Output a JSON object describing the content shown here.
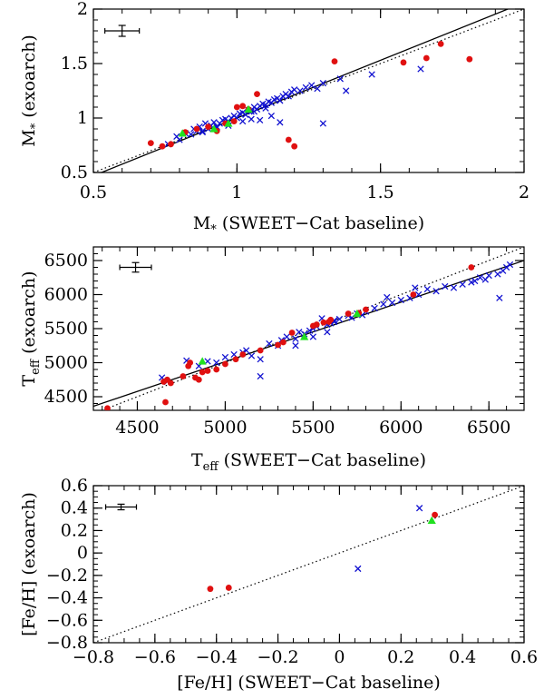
{
  "chart_data": [
    {
      "type": "scatter",
      "id": "mass",
      "xlabel": {
        "main": "M",
        "sub": "*",
        "rest": " (SWEET−Cat baseline)"
      },
      "ylabel": {
        "main": "M",
        "sub": "*",
        "rest": " (exoarch)"
      },
      "xlim": [
        0.5,
        2.0
      ],
      "ylim": [
        0.5,
        2.0
      ],
      "xticks": [
        "0.5",
        "1",
        "1.5",
        "2"
      ],
      "xtick_values": [
        0.5,
        1.0,
        1.5,
        2.0
      ],
      "yticks": [
        "0.5",
        "1",
        "1.5",
        "2"
      ],
      "ytick_values": [
        0.5,
        1.0,
        1.5,
        2.0
      ],
      "minor_step": 0.1,
      "fit_line": {
        "x": [
          0.5,
          2.0
        ],
        "y": [
          0.47,
          2.06
        ]
      },
      "identity_line": {
        "x": [
          0.5,
          2.0
        ],
        "y": [
          0.5,
          2.0
        ]
      },
      "error_bar": {
        "x": 0.6,
        "y": 1.8,
        "dx": 0.06,
        "dy": 0.05
      },
      "series": [
        {
          "name": "cross",
          "marker": "x",
          "color": "#1010d0",
          "x": [
            0.76,
            0.79,
            0.8,
            0.82,
            0.84,
            0.85,
            0.86,
            0.87,
            0.88,
            0.89,
            0.9,
            0.91,
            0.92,
            0.93,
            0.94,
            0.95,
            0.96,
            0.97,
            0.98,
            0.99,
            1.0,
            1.01,
            1.02,
            1.03,
            1.04,
            1.05,
            1.06,
            1.07,
            1.08,
            1.09,
            1.1,
            1.11,
            1.12,
            1.13,
            1.14,
            1.15,
            1.16,
            1.17,
            1.18,
            1.19,
            1.2,
            1.22,
            1.24,
            1.26,
            1.28,
            1.3,
            1.02,
            1.05,
            1.08,
            1.12,
            1.15,
            1.3,
            1.36,
            1.38,
            1.47,
            1.64,
            0.88,
            0.93,
            0.97,
            1.06,
            1.1
          ],
          "y": [
            0.76,
            0.83,
            0.8,
            0.86,
            0.85,
            0.9,
            0.88,
            0.92,
            0.87,
            0.95,
            0.9,
            0.93,
            0.96,
            0.91,
            0.95,
            0.98,
            0.99,
            0.97,
            1.0,
            1.02,
            1.0,
            1.04,
            1.05,
            1.03,
            1.07,
            1.06,
            1.1,
            1.08,
            1.11,
            1.13,
            1.12,
            1.15,
            1.14,
            1.17,
            1.18,
            1.16,
            1.2,
            1.22,
            1.2,
            1.24,
            1.26,
            1.25,
            1.28,
            1.3,
            1.27,
            1.32,
            0.97,
            0.99,
            0.98,
            1.02,
            0.96,
            0.95,
            1.36,
            1.25,
            1.4,
            1.45,
            0.88,
            0.92,
            0.93,
            1.06,
            1.09
          ]
        },
        {
          "name": "circle",
          "marker": "circle",
          "color": "#e01010",
          "x": [
            0.7,
            0.74,
            0.77,
            0.82,
            0.86,
            0.9,
            0.93,
            0.96,
            0.99,
            1.0,
            1.02,
            1.04,
            1.07,
            1.18,
            1.2,
            1.34,
            1.58,
            1.66,
            1.71,
            1.81
          ],
          "y": [
            0.77,
            0.74,
            0.76,
            0.87,
            0.9,
            0.92,
            0.88,
            0.95,
            0.97,
            1.1,
            1.11,
            1.08,
            1.22,
            0.8,
            0.74,
            1.52,
            1.51,
            1.55,
            1.68,
            1.54
          ]
        },
        {
          "name": "triangle",
          "marker": "triangle",
          "color": "#20e020",
          "x": [
            0.81,
            0.92,
            0.97,
            1.04
          ],
          "y": [
            0.86,
            0.9,
            0.95,
            1.08
          ]
        }
      ]
    },
    {
      "type": "scatter",
      "id": "teff",
      "xlabel": {
        "main": "T",
        "sub": "eff",
        "rest": " (SWEET−Cat baseline)"
      },
      "ylabel": {
        "main": "T",
        "sub": "eff",
        "rest": " (exoarch)"
      },
      "xlim": [
        4250,
        6700
      ],
      "ylim": [
        4300,
        6700
      ],
      "xticks": [
        "4500",
        "5000",
        "5500",
        "6000",
        "6500"
      ],
      "xtick_values": [
        4500,
        5000,
        5500,
        6000,
        6500
      ],
      "yticks": [
        "4500",
        "5000",
        "5500",
        "6000",
        "6500"
      ],
      "ytick_values": [
        4500,
        5000,
        5500,
        6000,
        6500
      ],
      "minor_step": 100,
      "fit_line": {
        "x": [
          4250,
          6700
        ],
        "y": [
          4360,
          6500
        ]
      },
      "identity_line": {
        "x": [
          4250,
          6700
        ],
        "y": [
          4250,
          6700
        ]
      },
      "error_bar": {
        "x": 4490,
        "y": 6400,
        "dx": 90,
        "dy": 70
      },
      "series": [
        {
          "name": "cross",
          "marker": "x",
          "color": "#1010d0",
          "x": [
            4640,
            4670,
            4780,
            4850,
            4900,
            4950,
            5000,
            5050,
            5100,
            5120,
            5150,
            5200,
            5250,
            5300,
            5320,
            5350,
            5400,
            5420,
            5450,
            5480,
            5500,
            5520,
            5550,
            5580,
            5600,
            5620,
            5650,
            5700,
            5720,
            5750,
            5780,
            5800,
            5850,
            5900,
            5920,
            5950,
            6000,
            6050,
            6080,
            6100,
            6150,
            6200,
            6250,
            6300,
            6350,
            6400,
            6420,
            6450,
            6480,
            6500,
            6550,
            6580,
            6600,
            6620,
            6560,
            5500,
            5580,
            5620,
            5200,
            5400
          ],
          "y": [
            4780,
            4720,
            5030,
            4950,
            5020,
            5000,
            5080,
            5120,
            5150,
            5180,
            5100,
            4800,
            5280,
            5250,
            5330,
            5380,
            5350,
            5450,
            5420,
            5470,
            5500,
            5530,
            5650,
            5560,
            5580,
            5620,
            5640,
            5690,
            5660,
            5720,
            5700,
            5750,
            5800,
            5860,
            5960,
            5880,
            5920,
            5950,
            6100,
            6000,
            6080,
            6050,
            6120,
            6100,
            6150,
            6180,
            6200,
            6250,
            6220,
            6280,
            6300,
            6350,
            6400,
            6440,
            5950,
            5380,
            5450,
            5600,
            5050,
            5250
          ]
        },
        {
          "name": "circle",
          "marker": "circle",
          "color": "#e01010",
          "x": [
            4330,
            4650,
            4670,
            4690,
            4760,
            4790,
            4800,
            4830,
            4850,
            4870,
            4900,
            4950,
            5000,
            5060,
            5100,
            5200,
            5300,
            5330,
            5380,
            5500,
            5520,
            5560,
            5590,
            5600,
            5700,
            5760,
            5800,
            6070,
            6400,
            4660
          ],
          "y": [
            4330,
            4720,
            4750,
            4700,
            4800,
            4950,
            5000,
            4780,
            4750,
            4860,
            4880,
            4900,
            4980,
            5050,
            5120,
            5180,
            5260,
            5300,
            5440,
            5540,
            5560,
            5590,
            5600,
            5630,
            5720,
            5730,
            5780,
            6000,
            6400,
            4420
          ]
        },
        {
          "name": "triangle",
          "marker": "triangle",
          "color": "#20e020",
          "x": [
            4870,
            5450,
            5750
          ],
          "y": [
            5020,
            5380,
            5720
          ]
        }
      ]
    },
    {
      "type": "scatter",
      "id": "feh",
      "xlabel": {
        "main": "[Fe/H]",
        "sub": "",
        "rest": " (SWEET−Cat baseline)"
      },
      "ylabel": {
        "main": "[Fe/H]",
        "sub": "",
        "rest": " (exoarch)"
      },
      "xlim": [
        -0.8,
        0.6
      ],
      "ylim": [
        -0.8,
        0.6
      ],
      "xticks": [
        "−0.8",
        "−0.6",
        "−0.4",
        "−0.2",
        "0",
        "0.2",
        "0.4",
        "0.6"
      ],
      "xtick_values": [
        -0.8,
        -0.6,
        -0.4,
        -0.2,
        0.0,
        0.2,
        0.4,
        0.6
      ],
      "yticks": [
        "−0.8",
        "−0.6",
        "−0.4",
        "−0.2",
        "0",
        "0.2",
        "0.4",
        "0.6"
      ],
      "ytick_values": [
        -0.8,
        -0.6,
        -0.4,
        -0.2,
        0.0,
        0.2,
        0.4,
        0.6
      ],
      "minor_step": 0.05,
      "fit_line": null,
      "identity_line": {
        "x": [
          -0.8,
          0.6
        ],
        "y": [
          -0.8,
          0.6
        ]
      },
      "error_bar": {
        "x": -0.71,
        "y": 0.41,
        "dx": 0.05,
        "dy": 0.025
      },
      "series": [
        {
          "name": "cross",
          "marker": "x",
          "color": "#1010d0",
          "x": [
            0.06,
            0.26
          ],
          "y": [
            -0.14,
            0.4
          ]
        },
        {
          "name": "circle",
          "marker": "circle",
          "color": "#e01010",
          "x": [
            -0.42,
            -0.36,
            0.31
          ],
          "y": [
            -0.32,
            -0.31,
            0.34
          ]
        },
        {
          "name": "triangle",
          "marker": "triangle",
          "color": "#20e020",
          "x": [
            0.3
          ],
          "y": [
            0.29
          ]
        }
      ]
    }
  ]
}
